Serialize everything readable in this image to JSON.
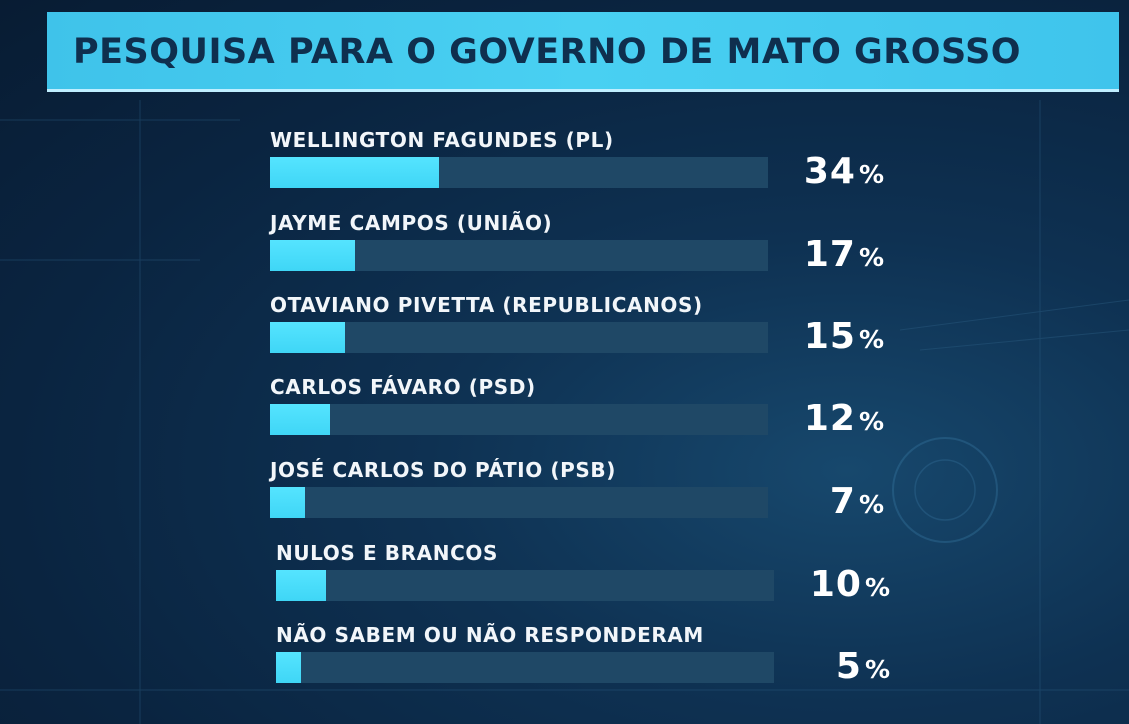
{
  "title": "PESQUISA PARA O GOVERNO DE MATO GROSSO",
  "chart_data": {
    "type": "bar",
    "orientation": "horizontal",
    "title": "PESQUISA PARA O GOVERNO DE MATO GROSSO",
    "categories": [
      "WELLINGTON FAGUNDES (PL)",
      "JAYME CAMPOS (UNIÃO)",
      "OTAVIANO PIVETTA (REPUBLICANOS)",
      "CARLOS FÁVARO (PSD)",
      "JOSÉ CARLOS DO PÁTIO (PSB)",
      "NULOS E BRANCOS",
      "NÃO SABEM OU NÃO RESPONDERAM"
    ],
    "values": [
      34,
      17,
      15,
      12,
      7,
      10,
      5
    ],
    "value_labels": [
      "34",
      "17",
      "15",
      "12",
      "7",
      "10",
      "5"
    ],
    "unit": "%",
    "xlim": [
      0,
      100
    ],
    "grid": false,
    "colors": {
      "bar_fill": "#4adcf8",
      "bar_track": "#1f4866",
      "title_bg": "#45cbee",
      "title_text": "#0f2f4e",
      "background": "#0c2a49"
    }
  }
}
